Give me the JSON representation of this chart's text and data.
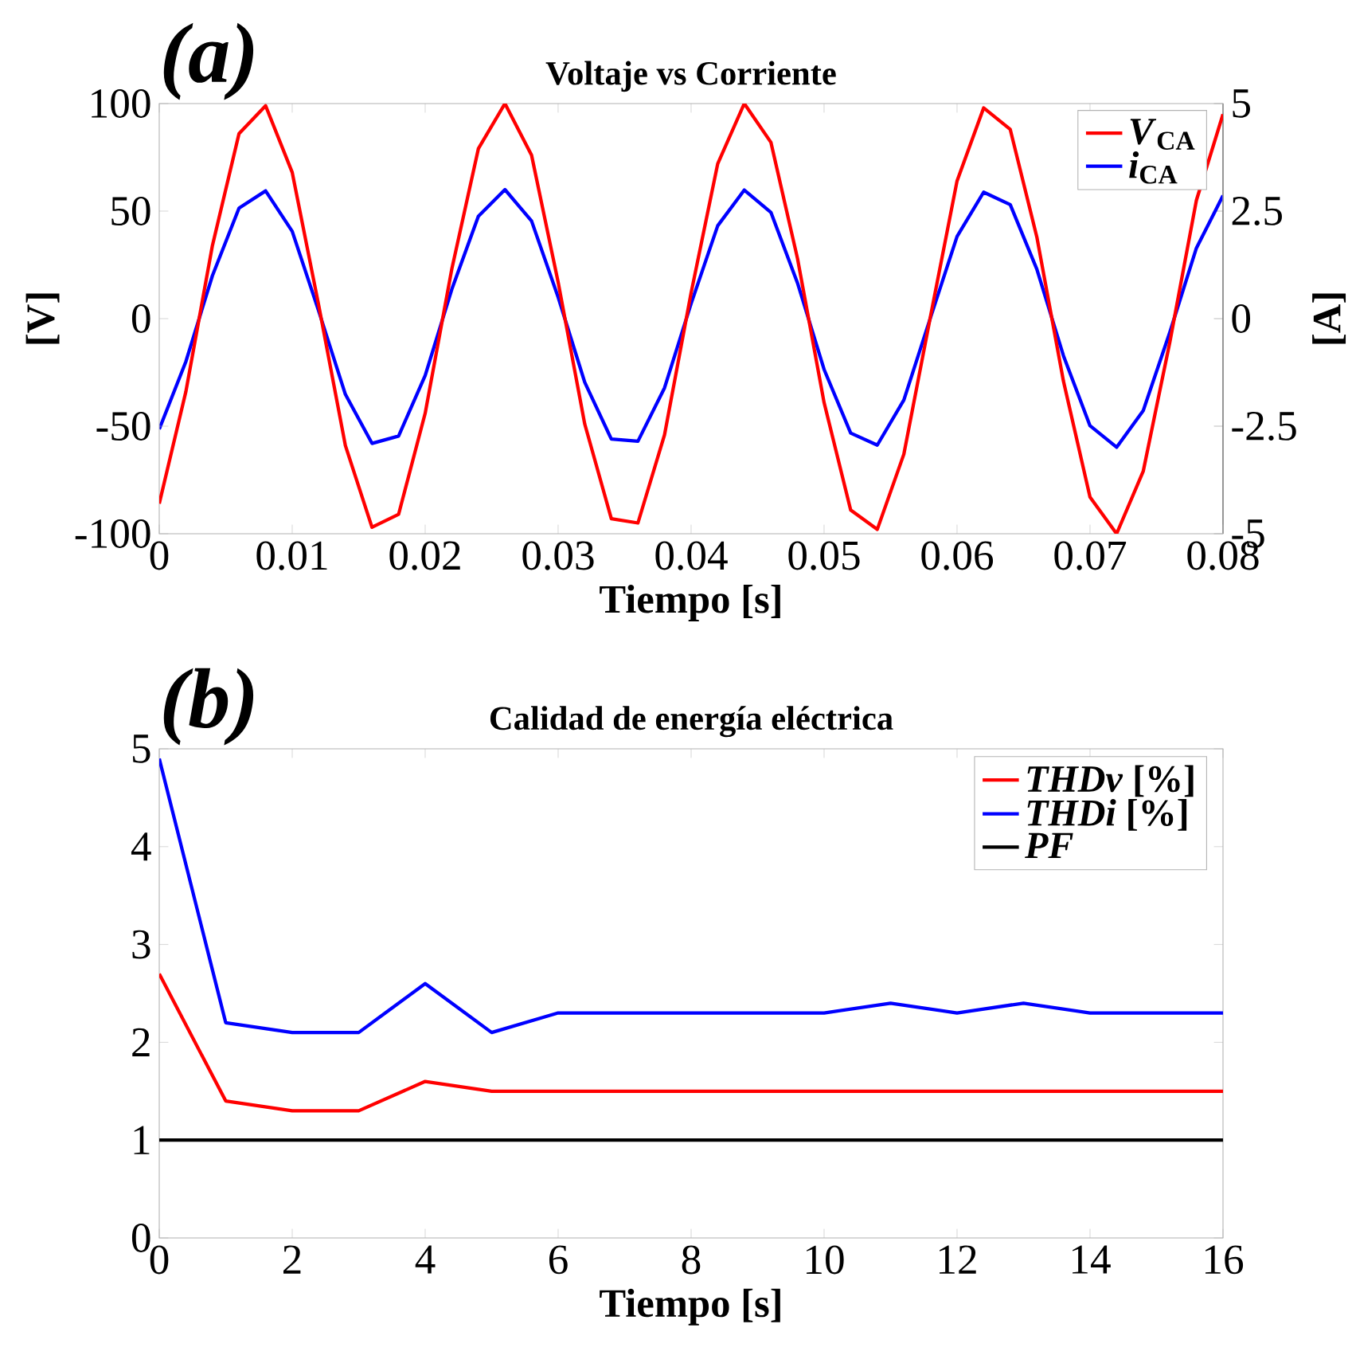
{
  "chart_data": [
    {
      "type": "line",
      "title": "Voltaje vs Corriente",
      "xlabel": "Tiempo [s]",
      "ylabel": "[V]",
      "y2label": "[A]",
      "annotations": [
        "(a)"
      ],
      "legend": "top right",
      "x": [
        0,
        0.002,
        0.004,
        0.006,
        0.008,
        0.01,
        0.012,
        0.014,
        0.016,
        0.018,
        0.02,
        0.022,
        0.024,
        0.026,
        0.028,
        0.03,
        0.032,
        0.034,
        0.036,
        0.038,
        0.04,
        0.042,
        0.044,
        0.046,
        0.048,
        0.05,
        0.052,
        0.054,
        0.056,
        0.058,
        0.06,
        0.062,
        0.064,
        0.066,
        0.068,
        0.07,
        0.072,
        0.074,
        0.076,
        0.078,
        0.08
      ],
      "series": [
        {
          "name": "*V*$_{CA}$",
          "color": "#ff0000",
          "values": [
            -86,
            -34,
            34,
            86,
            99,
            68,
            6,
            -59,
            -97,
            -91,
            -44,
            23,
            79,
            100,
            76,
            17,
            -49,
            -93,
            -95,
            -54,
            12,
            72,
            100,
            82,
            28,
            -39,
            -89,
            -98,
            -63,
            1,
            64,
            98,
            88,
            38,
            -29,
            -83,
            -100,
            -71,
            -11,
            55,
            95
          ]
        },
        {
          "name": "*i*$_{CA}$",
          "color": "#0000ff",
          "axis": "y2",
          "values": [
            -2.57,
            -1.0,
            1.0,
            2.57,
            2.97,
            2.03,
            0.17,
            -1.76,
            -2.9,
            -2.73,
            -1.32,
            0.68,
            2.38,
            3.0,
            2.27,
            0.5,
            -1.48,
            -2.8,
            -2.85,
            -1.61,
            0.35,
            2.16,
            2.99,
            2.47,
            0.83,
            -1.18,
            -2.66,
            -2.94,
            -1.89,
            0.02,
            1.91,
            2.94,
            2.65,
            1.15,
            -0.86,
            -2.49,
            -2.99,
            -2.14,
            -0.32,
            1.64,
            2.86
          ]
        }
      ],
      "xlim": [
        0,
        0.08
      ],
      "xticks": [
        0,
        0.01,
        0.02,
        0.03,
        0.04,
        0.05,
        0.06,
        0.07,
        0.08
      ],
      "ylim": [
        -100,
        100
      ],
      "yticks": [
        -100,
        -50,
        0,
        50,
        100
      ],
      "y2lim": [
        -5,
        5
      ],
      "y2ticks": [
        -5,
        -2.5,
        0,
        2.5,
        5
      ]
    },
    {
      "type": "line",
      "title": "Calidad de energía eléctrica",
      "xlabel": "Tiempo [s]",
      "annotations": [
        "(b)"
      ],
      "legend": "top right",
      "x": [
        0,
        1,
        2,
        3,
        4,
        5,
        6,
        7,
        8,
        9,
        10,
        11,
        12,
        13,
        14,
        15,
        16
      ],
      "series": [
        {
          "name": "*THDv* [%]",
          "color": "#ff0000",
          "values": [
            2.7,
            1.4,
            1.3,
            1.3,
            1.6,
            1.5,
            1.5,
            1.5,
            1.5,
            1.5,
            1.5,
            1.5,
            1.5,
            1.5,
            1.5,
            1.5,
            1.5
          ]
        },
        {
          "name": "*THDi*  [%]",
          "color": "#0000ff",
          "values": [
            4.9,
            2.2,
            2.1,
            2.1,
            2.6,
            2.1,
            2.3,
            2.3,
            2.3,
            2.3,
            2.3,
            2.4,
            2.3,
            2.4,
            2.3,
            2.3,
            2.3
          ]
        },
        {
          "name": "*PF*",
          "color": "#000000",
          "values": [
            1,
            1,
            1,
            1,
            1,
            1,
            1,
            1,
            1,
            1,
            1,
            1,
            1,
            1,
            1,
            1,
            1
          ]
        }
      ],
      "xlim": [
        0,
        16
      ],
      "xticks": [
        0,
        2,
        4,
        6,
        8,
        10,
        12,
        14,
        16
      ],
      "ylim": [
        0,
        5
      ],
      "yticks": [
        0,
        1,
        2,
        3,
        4,
        5
      ]
    }
  ]
}
